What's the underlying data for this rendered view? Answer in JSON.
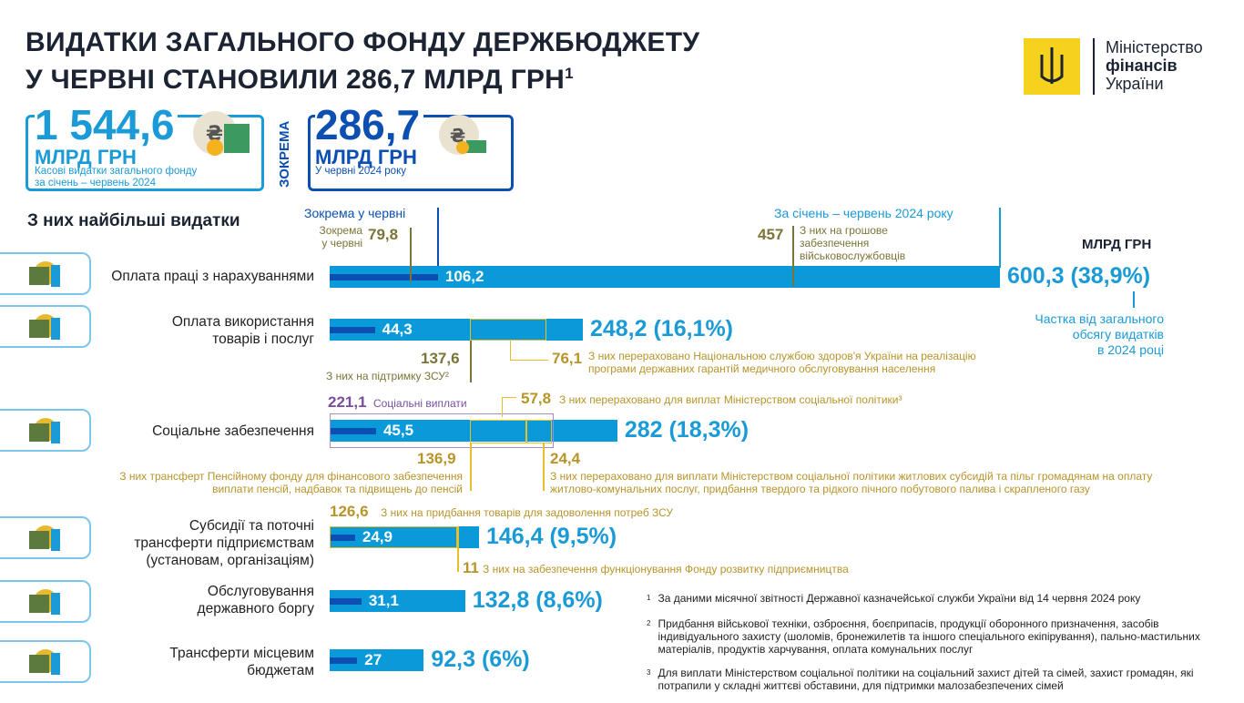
{
  "title": {
    "line1": "ВИДАТКИ ЗАГАЛЬНОГО ФОНДУ ДЕРЖБЮДЖЕТУ",
    "line2": "У ЧЕРВНІ СТАНОВИЛИ 286,7 МЛРД ГРН",
    "sup": "1"
  },
  "logo": {
    "l1": "Міністерство",
    "l2": "фінансів",
    "l3": "України",
    "color": "#f6d21e"
  },
  "kpi1": {
    "value": "1 544,6",
    "unit": "МЛРД ГРН",
    "desc1": "Касові видатки загального фонду",
    "desc2": "за січень – червень 2024"
  },
  "kpi_sep": "ЗОКРЕМА",
  "kpi2": {
    "value": "286,7",
    "unit": "МЛРД ГРН",
    "desc": "У червні 2024 року"
  },
  "section_title": "З них найбільші видатки",
  "legend": {
    "june": "Зокрема у червні",
    "ytd": "За січень – червень 2024 року",
    "unit": "МЛРД ГРН",
    "share1": "Частка від загального",
    "share2": "обсягу видатків",
    "share3": "в 2024 році"
  },
  "colors": {
    "bar": "#0a9ad9",
    "june_bar": "#0b4fb3",
    "total": "#1a9ad6",
    "olive": "#7a7536",
    "gold": "#b8942a",
    "purple": "#7b4fa0"
  },
  "chart_data": {
    "type": "bar",
    "orientation": "horizontal",
    "unit": "МЛРД ГРН",
    "categories": [
      "Оплата праці з нарахуваннями",
      "Оплата використання товарів і послуг",
      "Соціальне забезпечення",
      "Субсидії та поточні трансферти підприємствам (установам, організаціям)",
      "Обслуговування державного боргу",
      "Трансферти місцевим бюджетам"
    ],
    "series": [
      {
        "name": "За січень – червень 2024 року",
        "values": [
          600.3,
          248.2,
          282,
          146.4,
          132.8,
          92.3
        ],
        "labels": [
          "600,3 (38,9%)",
          "248,2 (16,1%)",
          "282 (18,3%)",
          "146,4 (9,5%)",
          "132,8 (8,6%)",
          "92,3 (6%)"
        ],
        "shares": [
          38.9,
          16.1,
          18.3,
          9.5,
          8.6,
          6
        ]
      },
      {
        "name": "Зокрема у червні",
        "values": [
          106.2,
          44.3,
          45.5,
          24.9,
          31.1,
          27
        ],
        "labels": [
          "106,2",
          "44,3",
          "45,5",
          "24,9",
          "31,1",
          "27"
        ]
      }
    ],
    "annotations": {
      "a1": {
        "value": "79,8",
        "t1": "Зокрема",
        "t2": "у червні"
      },
      "a2": {
        "value": "457",
        "t1": "З них на грошове",
        "t2": "забезпечення",
        "t3": "військовослужбовців"
      },
      "a3": {
        "value": "137,6",
        "text": "З них на підтримку ЗСУ²"
      },
      "a4": {
        "value": "76,1",
        "t1": "З них перераховано Національною службою здоров'я України на реалізацію",
        "t2": "програми державних гарантій медичного обслуговування населення"
      },
      "a5": {
        "value": "221,1",
        "text": "Соціальні виплати"
      },
      "a6": {
        "value": "57,8",
        "text": "З них перераховано для виплат Міністерством соціальної політики³"
      },
      "a7": {
        "value": "136,9",
        "t1": "З них трансферт Пенсійному фонду для фінансового забезпечення",
        "t2": "виплати пенсій, надбавок та підвищень до пенсій"
      },
      "a8": {
        "value": "24,4",
        "t1": "З них перераховано для виплати Міністерством соціальної політики  житлових субсидій та пільг громадянам на оплату",
        "t2": "житлово-комунальних послуг, придбання твердого та рідкого пічного побутового палива і скрапленого газу"
      },
      "a9": {
        "value": "126,6",
        "text": "З них на придбання товарів для задоволення потреб ЗСУ"
      },
      "a10": {
        "value": "11",
        "text": "З них на забезпечення функціонування Фонду розвитку підприємництва"
      }
    }
  },
  "cat_lines": [
    [
      "Оплата праці з нарахуваннями"
    ],
    [
      "Оплата використання",
      "товарів і послуг"
    ],
    [
      "Соціальне забезпечення"
    ],
    [
      "Субсидії та поточні",
      "трансферти підприємствам",
      "(установам, організаціям)"
    ],
    [
      "Обслуговування",
      "державного боргу"
    ],
    [
      "Трансферти місцевим",
      "бюджетам"
    ]
  ],
  "icons": [
    "soldier-and-official-icon",
    "military-equipment-shield-icon",
    "family-icon",
    "documents-briefcase-icon",
    "money-stacks-icon",
    "ukraine-map-icon"
  ],
  "footnotes": [
    {
      "n": "1",
      "t": "За даними місячної звітності Державної казначейської служби України від 14 червня 2024 року"
    },
    {
      "n": "2",
      "t": "Придбання військової техніки, озброєння, боєприпасів, продукції оборонного призначення, засобів індивідуального захисту (шоломів, бронежилетів та іншого спеціального екіпірування), пально-мастильних матеріалів, продуктів харчування, оплата комунальних послуг"
    },
    {
      "n": "3",
      "t": "Для виплати Міністерством соціальної політики на соціальний захист дітей та сімей, захист громадян, які потрапили у складні життєві обставини, для підтримки малозабезпечених сімей"
    }
  ]
}
